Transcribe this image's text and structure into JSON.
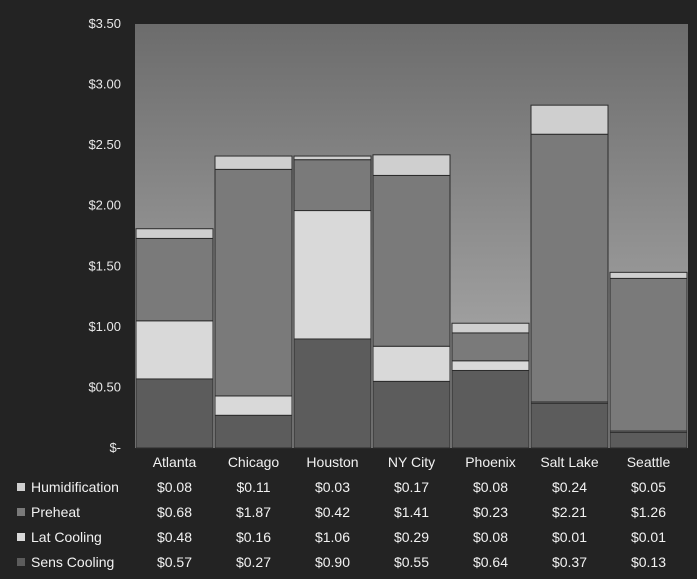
{
  "chart_data": {
    "type": "bar",
    "stacked": true,
    "categories": [
      "Atlanta",
      "Chicago",
      "Houston",
      "NY City",
      "Phoenix",
      "Salt Lake",
      "Seattle"
    ],
    "ylim": [
      0,
      3.5
    ],
    "yticks": [
      0,
      0.5,
      1.0,
      1.5,
      2.0,
      2.5,
      3.0,
      3.5
    ],
    "ytick_labels": [
      "$-",
      "$0.50",
      "$1.00",
      "$1.50",
      "$2.00",
      "$2.50",
      "$3.00",
      "$3.50"
    ],
    "series": [
      {
        "name": "Sens Cooling",
        "values": [
          0.57,
          0.27,
          0.9,
          0.55,
          0.64,
          0.37,
          0.13
        ],
        "labels": [
          "$0.57",
          "$0.27",
          "$0.90",
          "$0.55",
          "$0.64",
          "$0.37",
          "$0.13"
        ],
        "color": "#5c5c5c"
      },
      {
        "name": "Lat Cooling",
        "values": [
          0.48,
          0.16,
          1.06,
          0.29,
          0.08,
          0.01,
          0.01
        ],
        "labels": [
          "$0.48",
          "$0.16",
          "$1.06",
          "$0.29",
          "$0.08",
          "$0.01",
          "$0.01"
        ],
        "color": "#d9d9d9"
      },
      {
        "name": "Preheat",
        "values": [
          0.68,
          1.87,
          0.42,
          1.41,
          0.23,
          2.21,
          1.26
        ],
        "labels": [
          "$0.68",
          "$1.87",
          "$0.42",
          "$1.41",
          "$0.23",
          "$2.21",
          "$1.26"
        ],
        "color": "#7a7a7a"
      },
      {
        "name": "Humidification",
        "values": [
          0.08,
          0.11,
          0.03,
          0.17,
          0.08,
          0.24,
          0.05
        ],
        "labels": [
          "$0.08",
          "$0.11",
          "$0.03",
          "$0.17",
          "$0.08",
          "$0.24",
          "$0.05"
        ],
        "color": "#cfcfcf"
      }
    ],
    "table_row_order": [
      "Humidification",
      "Preheat",
      "Lat Cooling",
      "Sens Cooling"
    ],
    "legend": "data-table",
    "grid": false,
    "colors": {
      "page": "#232323",
      "plot_top": "#6c6c6c",
      "plot_bottom": "#b0b0b0",
      "bar_outline": "#2c2c2c"
    }
  }
}
